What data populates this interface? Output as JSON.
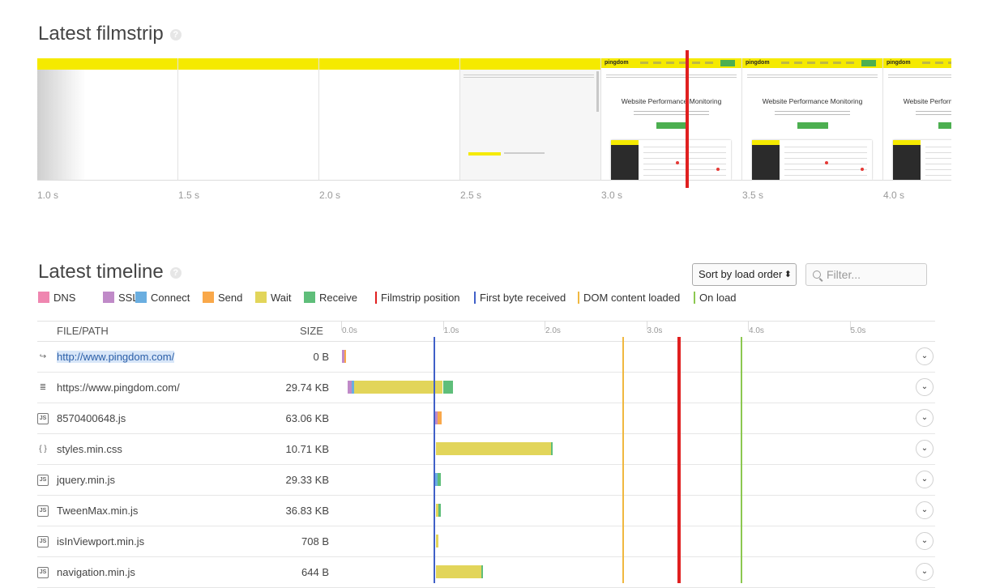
{
  "filmstrip": {
    "title": "Latest filmstrip",
    "help_icon": "?",
    "ticks": [
      "1.0 s",
      "1.5 s",
      "2.0 s",
      "2.5 s",
      "3.0 s",
      "3.5 s",
      "4.0 s"
    ],
    "page_title": "Website Performance Monitoring",
    "logo": "pingdom"
  },
  "timeline": {
    "title": "Latest timeline",
    "help_icon": "?",
    "sort_label": "Sort by load order",
    "filter_placeholder": "Filter...",
    "legend": [
      {
        "label": "DNS",
        "color": "#ef86b0"
      },
      {
        "label": "SSL",
        "color": "#c08ac8"
      },
      {
        "label": "Connect",
        "color": "#6aaee0"
      },
      {
        "label": "Send",
        "color": "#f9a84a"
      },
      {
        "label": "Wait",
        "color": "#e2d55a"
      },
      {
        "label": "Receive",
        "color": "#5fbe7a"
      },
      {
        "label": "Filmstrip position",
        "color": "#e02020"
      },
      {
        "label": "First byte received",
        "color": "#4060c8"
      },
      {
        "label": "DOM content loaded",
        "color": "#f0b840"
      },
      {
        "label": "On load",
        "color": "#8cc850"
      }
    ],
    "columns": {
      "file": "FILE/PATH",
      "size": "SIZE"
    },
    "axis_ticks": [
      "0.0s",
      "1.0s",
      "2.0s",
      "3.0s",
      "4.0s",
      "5.0s"
    ],
    "markers": {
      "first_byte_s": 0.92,
      "dom_content_loaded_s": 2.77,
      "on_load_s": 3.94,
      "filmstrip_s": 3.32
    },
    "rows": [
      {
        "icon": "redirect-icon",
        "path": "http://www.pingdom.com/",
        "size": "0 B",
        "highlighted": true,
        "segments": [
          {
            "phase": "SSL",
            "start": 0.01,
            "end": 0.03
          },
          {
            "phase": "Send",
            "start": 0.03,
            "end": 0.05
          }
        ]
      },
      {
        "icon": "document-icon",
        "path": "https://www.pingdom.com/",
        "size": "29.74 KB",
        "highlighted": false,
        "segments": [
          {
            "phase": "SSL",
            "start": 0.06,
            "end": 0.1
          },
          {
            "phase": "Connect",
            "start": 0.1,
            "end": 0.13
          },
          {
            "phase": "Wait",
            "start": 0.13,
            "end": 1.0
          },
          {
            "phase": "Receive",
            "start": 1.0,
            "end": 1.1
          }
        ]
      },
      {
        "icon": "js-file-icon",
        "path": "8570400648.js",
        "size": "63.06 KB",
        "highlighted": false,
        "segments": [
          {
            "phase": "SSL",
            "start": 0.92,
            "end": 0.95
          },
          {
            "phase": "Send",
            "start": 0.95,
            "end": 0.99
          }
        ]
      },
      {
        "icon": "css-file-icon",
        "path": "styles.min.css",
        "size": "10.71 KB",
        "highlighted": false,
        "segments": [
          {
            "phase": "Wait",
            "start": 0.93,
            "end": 2.06
          },
          {
            "phase": "Receive",
            "start": 2.06,
            "end": 2.08
          }
        ]
      },
      {
        "icon": "js-file-icon",
        "path": "jquery.min.js",
        "size": "29.33 KB",
        "highlighted": false,
        "segments": [
          {
            "phase": "Connect",
            "start": 0.92,
            "end": 0.95
          },
          {
            "phase": "Receive",
            "start": 0.95,
            "end": 0.98
          }
        ]
      },
      {
        "icon": "js-file-icon",
        "path": "TweenMax.min.js",
        "size": "36.83 KB",
        "highlighted": false,
        "segments": [
          {
            "phase": "Wait",
            "start": 0.93,
            "end": 0.96
          },
          {
            "phase": "Receive",
            "start": 0.96,
            "end": 0.98
          }
        ]
      },
      {
        "icon": "js-file-icon",
        "path": "isInViewport.min.js",
        "size": "708 B",
        "highlighted": false,
        "segments": [
          {
            "phase": "Wait",
            "start": 0.93,
            "end": 0.96
          }
        ]
      },
      {
        "icon": "js-file-icon",
        "path": "navigation.min.js",
        "size": "644 B",
        "highlighted": false,
        "segments": [
          {
            "phase": "Wait",
            "start": 0.93,
            "end": 1.38
          },
          {
            "phase": "Receive",
            "start": 1.38,
            "end": 1.39
          }
        ]
      }
    ]
  }
}
